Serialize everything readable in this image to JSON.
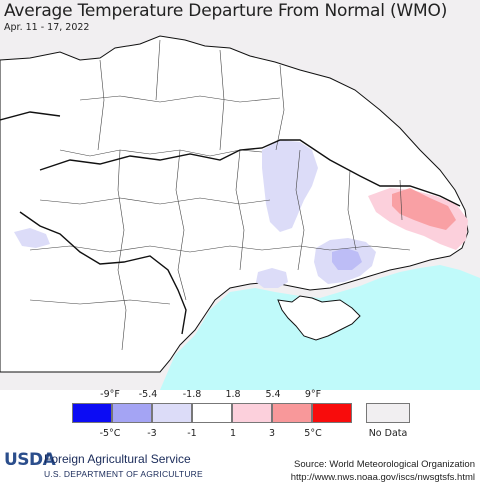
{
  "title": "Average Temperature Departure From Normal (WMO)",
  "date_range": "Apr. 11 - 17, 2022",
  "colors": {
    "background_outside": "#f1eff1",
    "land": "#ffffff",
    "water": "#c0fafa",
    "border": "#111111",
    "subdivision": "#444444"
  },
  "legend": {
    "fahrenheit_ticks": [
      "-9°F",
      "-5.4",
      "-1.8",
      "1.8",
      "5.4",
      "9°F"
    ],
    "celsius_ticks": [
      "-5°C",
      "-3",
      "-1",
      "1",
      "3",
      "5°C"
    ],
    "swatches": [
      {
        "color": "#0c0cf4"
      },
      {
        "color": "#a4a4f4"
      },
      {
        "color": "#dcdcf8"
      },
      {
        "color": "#ffffff"
      },
      {
        "color": "#fcd0dc"
      },
      {
        "color": "#f8989a"
      },
      {
        "color": "#f80c0c"
      }
    ],
    "no_data_color": "#f1eff1",
    "no_data_label": "No Data"
  },
  "footer": {
    "logo": "USDA",
    "agency": "Foreign Agricultural Service",
    "department": "U.S. DEPARTMENT OF AGRICULTURE",
    "source_line1": "Source: World Meteorological Organization",
    "source_line2": "http://www.nws.noaa.gov/iscs/nwsgtsfs.html"
  }
}
